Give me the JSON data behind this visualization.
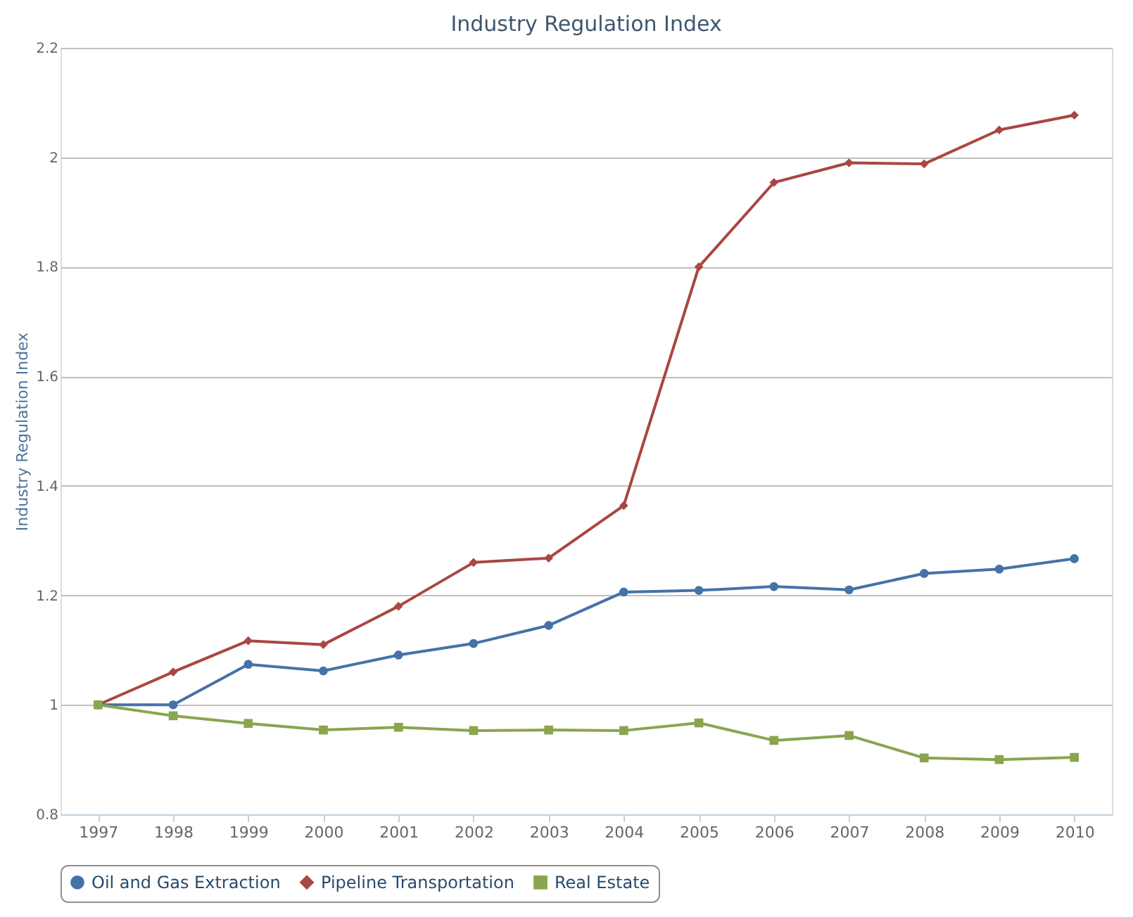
{
  "chart_data": {
    "type": "line",
    "title": "Industry Regulation Index",
    "ylabel": "Industry Regulation Index",
    "categories": [
      "1997",
      "1998",
      "1999",
      "2000",
      "2001",
      "2002",
      "2003",
      "2004",
      "2005",
      "2006",
      "2007",
      "2008",
      "2009",
      "2010"
    ],
    "series": [
      {
        "name": "Oil and Gas Extraction",
        "color": "#4572a7",
        "marker": "circle",
        "values": [
          1.0,
          1.0,
          1.074,
          1.062,
          1.091,
          1.112,
          1.145,
          1.206,
          1.209,
          1.216,
          1.21,
          1.24,
          1.248,
          1.267
        ]
      },
      {
        "name": "Pipeline Transportation",
        "color": "#aa4643",
        "marker": "diamond",
        "values": [
          1.0,
          1.06,
          1.117,
          1.11,
          1.18,
          1.26,
          1.268,
          1.364,
          1.8,
          1.954,
          1.99,
          1.988,
          2.05,
          2.077
        ]
      },
      {
        "name": "Real Estate",
        "color": "#89a54e",
        "marker": "square",
        "values": [
          1.0,
          0.98,
          0.966,
          0.954,
          0.959,
          0.953,
          0.954,
          0.953,
          0.967,
          0.935,
          0.944,
          0.903,
          0.9,
          0.904
        ]
      }
    ],
    "ylim": [
      0.8,
      2.2
    ],
    "yticks": [
      0.8,
      1,
      1.2,
      1.4,
      1.6,
      1.8,
      2,
      2.2
    ],
    "grid": "y",
    "legend": "bottom",
    "line_style": "solid"
  }
}
